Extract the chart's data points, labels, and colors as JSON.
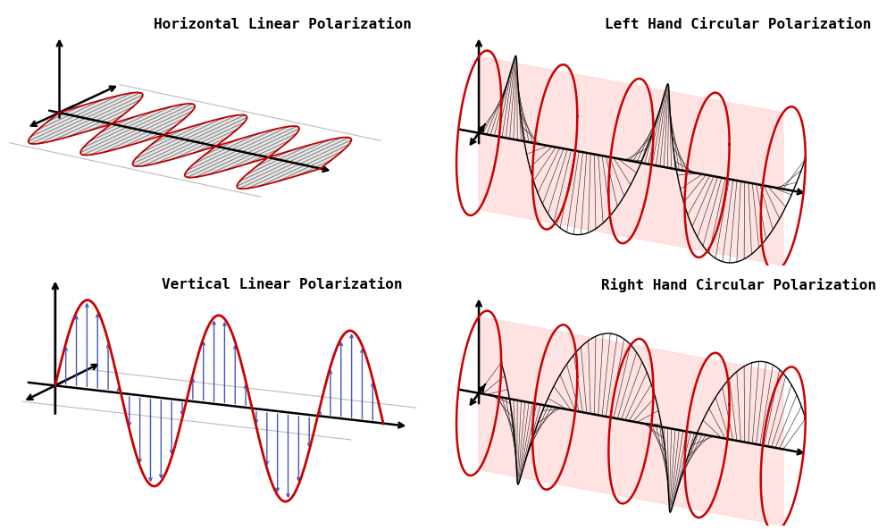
{
  "title_top_left": "Horizontal Linear Polarization",
  "title_top_right": "Left Hand Circular Polarization",
  "title_bot_left": "Vertical Linear Polarization",
  "title_bot_right": "Right Hand Circular Polarization",
  "bg_color": "#ffffff",
  "red_color": "#cc0000",
  "blue_color": "#4455bb",
  "black_color": "#000000",
  "gray_color": "#aaaaaa",
  "pink_fill": "#ffaaaa",
  "title_fontsize": 11.5
}
